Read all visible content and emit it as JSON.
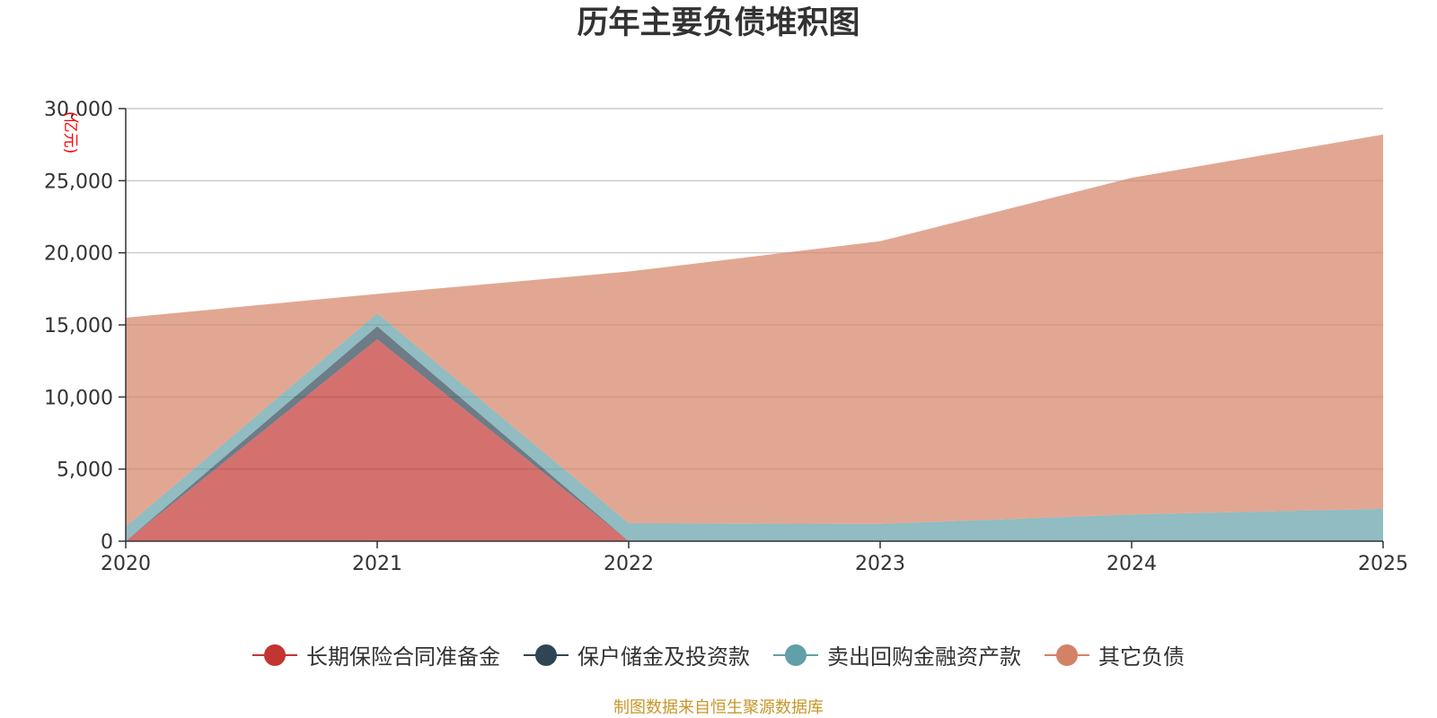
{
  "title": "历年主要负债堆积图",
  "source_note": "制图数据来自恒生聚源数据库",
  "colors": {
    "long_term_reserve": "#c23531",
    "policyholder_deposit": "#2f4554",
    "repo_sold": "#61a0a8",
    "other": "#d48265",
    "grid": "#cccccc",
    "axis": "#333333",
    "unit": "#ff0000"
  },
  "chart_data": {
    "type": "area",
    "stacked": true,
    "title": "历年主要负债堆积图",
    "unit": "(亿元)",
    "x": [
      "2020",
      "2021",
      "2022",
      "2023",
      "2024",
      "2025"
    ],
    "ylim": [
      0,
      30000
    ],
    "yticks": [
      0,
      5000,
      10000,
      15000,
      20000,
      25000,
      30000
    ],
    "ytick_labels": [
      "0",
      "5,000",
      "10,000",
      "15,000",
      "20,000",
      "25,000",
      "30,000"
    ],
    "grid": true,
    "legend_position": "bottom",
    "series": [
      {
        "name": "长期保险合同准备金",
        "values": [
          0,
          14000,
          0,
          0,
          0,
          0
        ]
      },
      {
        "name": "保户储金及投资款",
        "values": [
          0,
          900,
          0,
          0,
          0,
          0
        ]
      },
      {
        "name": "卖出回购金融资产款",
        "values": [
          1000,
          900,
          1250,
          1200,
          1850,
          2250
        ]
      },
      {
        "name": "其它负债",
        "values": [
          14500,
          1350,
          17450,
          19600,
          23350,
          25950
        ]
      }
    ]
  }
}
